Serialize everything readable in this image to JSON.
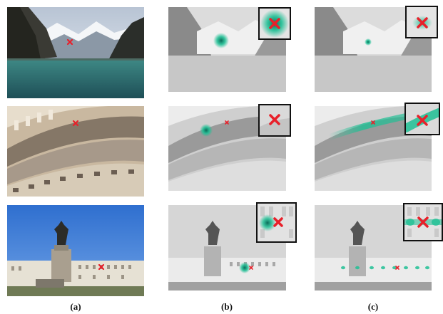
{
  "figure": {
    "captions": [
      "(a)",
      "(b)",
      "(c)"
    ],
    "columns": [
      "original",
      "heatmap-b",
      "heatmap-c"
    ],
    "rows": [
      {
        "scene": "mountain-lake"
      },
      {
        "scene": "rotunda-frieze"
      },
      {
        "scene": "palace-statue"
      }
    ],
    "colors": {
      "marker": "#e8202a",
      "heat": "#1fbf94",
      "inset_border": "#111111"
    },
    "icon_names": [
      "cross-marker-icon"
    ]
  }
}
